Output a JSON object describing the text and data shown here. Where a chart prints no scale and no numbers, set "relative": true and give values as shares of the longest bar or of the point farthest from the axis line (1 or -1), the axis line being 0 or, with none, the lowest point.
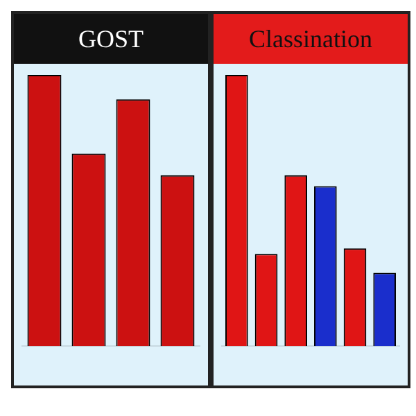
{
  "chart_data": [
    {
      "type": "bar",
      "title": "GOST",
      "relative": true,
      "categories": [
        null,
        null,
        null,
        null
      ],
      "series": [
        {
          "color": "#cc1111",
          "values": [
            1,
            0.71,
            0.91,
            0.63
          ]
        }
      ]
    },
    {
      "type": "bar",
      "title": "Classination",
      "relative": true,
      "categories": [
        null,
        null,
        null,
        null,
        null,
        null
      ],
      "series": [
        {
          "colors": [
            "#e01515",
            "#e01515",
            "#e01515",
            "#1a2ecc",
            "#e01515",
            "#1a2ecc"
          ],
          "values": [
            1,
            0.34,
            0.63,
            0.59,
            0.36,
            0.27
          ]
        }
      ]
    }
  ]
}
